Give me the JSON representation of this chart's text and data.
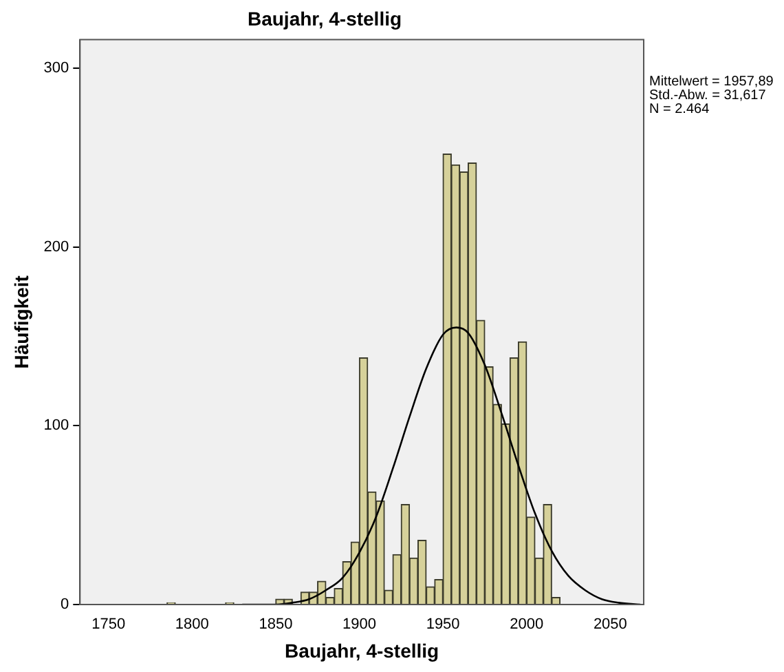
{
  "chart_data": {
    "type": "histogram",
    "title": "Baujahr, 4-stellig",
    "xlabel": "Baujahr, 4-stellig",
    "ylabel": "Häufigkeit",
    "bins": [
      1785,
      1790,
      1795,
      1800,
      1805,
      1810,
      1815,
      1820,
      1825,
      1830,
      1835,
      1840,
      1845,
      1850,
      1855,
      1860,
      1865,
      1870,
      1875,
      1880,
      1885,
      1890,
      1895,
      1900,
      1905,
      1910,
      1915,
      1920,
      1925,
      1930,
      1935,
      1940,
      1945,
      1950,
      1955,
      1960,
      1965,
      1970,
      1975,
      1980,
      1985,
      1990,
      1995,
      2000,
      2005,
      2010,
      2015,
      2020
    ],
    "values": [
      1,
      0,
      0,
      0,
      0,
      0,
      0,
      1,
      0,
      0,
      0,
      0,
      0,
      3,
      3,
      0,
      7,
      7,
      13,
      4,
      9,
      24,
      35,
      138,
      63,
      58,
      8,
      28,
      56,
      26,
      36,
      10,
      14,
      252,
      246,
      242,
      247,
      159,
      133,
      112,
      101,
      138,
      147,
      49,
      26,
      56,
      4
    ],
    "color": "#d6d19a",
    "series": [
      {
        "type": "line",
        "color": "#000000",
        "x": [
          1830,
          1840,
          1850,
          1860,
          1870,
          1880,
          1890,
          1900,
          1910,
          1920,
          1930,
          1940,
          1950,
          1958,
          1965,
          1975,
          1985,
          1995,
          2005,
          2015,
          2025,
          2035,
          2045,
          2055,
          2068
        ],
        "values": [
          0,
          0,
          0,
          1,
          3,
          8,
          15,
          29,
          49,
          76,
          105,
          132,
          151,
          155,
          152,
          134,
          107,
          78,
          51,
          30,
          16,
          8,
          3,
          1,
          0
        ]
      }
    ],
    "xlim": [
      1733,
      2070
    ],
    "xticks": [
      1750,
      1800,
      1850,
      1900,
      1950,
      2000,
      2050
    ],
    "ylim": [
      0,
      316
    ],
    "yticks": [
      0,
      100,
      200,
      300
    ],
    "grid": false,
    "legend": false,
    "marker": "none",
    "annotations": [
      "Mittelwert = 1957,89",
      "Std.-Abw. = 31,617",
      "N = 2.464"
    ]
  }
}
